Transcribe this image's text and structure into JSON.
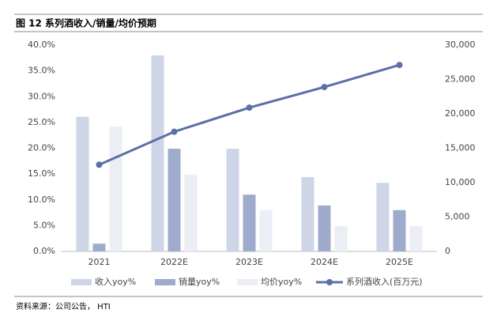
{
  "chart_data": {
    "type": "bar",
    "title": "图 12 系列酒收入/销量/均价预期",
    "source": "资料来源：公司公告， HTI",
    "categories": [
      "2021",
      "2022E",
      "2023E",
      "2024E",
      "2025E"
    ],
    "series": [
      {
        "name": "收入yoy%",
        "color": "#cdd5e6",
        "values": [
          26.1,
          38.0,
          19.9,
          14.4,
          13.3
        ]
      },
      {
        "name": "销量yoy%",
        "color": "#9eabcc",
        "values": [
          1.5,
          19.9,
          11.0,
          8.9,
          8.0
        ]
      },
      {
        "name": "均价yoy%",
        "color": "#eceef5",
        "values": [
          24.2,
          14.9,
          8.0,
          4.9,
          4.9
        ]
      },
      {
        "name": "系列酒收入(百万元)",
        "color": "#5b6fa8",
        "type": "line",
        "axis": "y2",
        "values": [
          12600,
          17400,
          20900,
          23900,
          27100
        ]
      }
    ],
    "ylim": [
      0,
      40
    ],
    "yticks": [
      {
        "value": 0,
        "label": "0.0%"
      },
      {
        "value": 5,
        "label": "5.0%"
      },
      {
        "value": 10,
        "label": "10.0%"
      },
      {
        "value": 15,
        "label": "15.0%"
      },
      {
        "value": 20,
        "label": "20.0%"
      },
      {
        "value": 25,
        "label": "25.0%"
      },
      {
        "value": 30,
        "label": "30.0%"
      },
      {
        "value": 35,
        "label": "35.0%"
      },
      {
        "value": 40,
        "label": "40.0%"
      }
    ],
    "y2lim": [
      0,
      30000
    ],
    "y2ticks": [
      0,
      {
        "value": 5000,
        "label": "5,000"
      },
      {
        "value": 10000,
        "label": "10,000"
      },
      {
        "value": 15000,
        "label": "15,000"
      },
      {
        "value": 20000,
        "label": "20,000"
      },
      {
        "value": 25000,
        "label": "25,000"
      },
      {
        "value": 30000,
        "label": "30,000"
      }
    ],
    "legend": "bottom"
  }
}
